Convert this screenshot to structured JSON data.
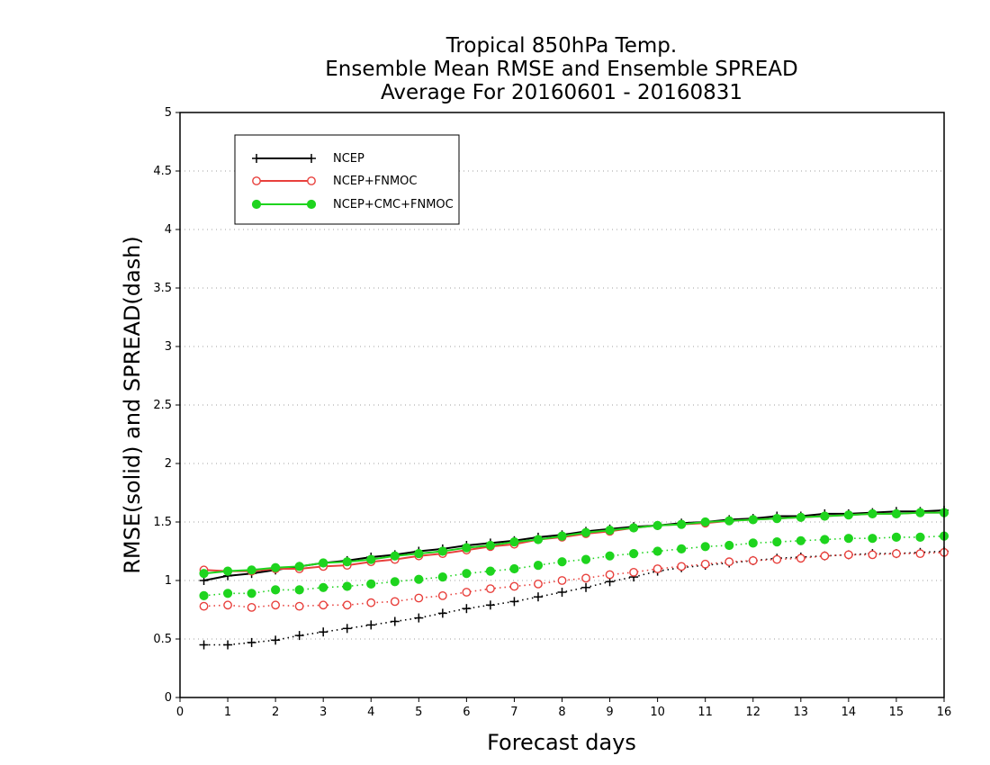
{
  "chart_data": {
    "type": "line",
    "title_lines": [
      "Tropical 850hPa Temp.",
      "Ensemble Mean RMSE and Ensemble SPREAD",
      "Average For 20160601 - 20160831"
    ],
    "xlabel": "Forecast days",
    "ylabel": "RMSE(solid) and SPREAD(dash)",
    "xlim": [
      0,
      16
    ],
    "ylim": [
      0,
      5
    ],
    "xticks": [
      "0",
      "1",
      "2",
      "3",
      "4",
      "5",
      "6",
      "7",
      "8",
      "9",
      "10",
      "11",
      "12",
      "13",
      "14",
      "15",
      "16"
    ],
    "yticks": [
      "0",
      "0.5",
      "1",
      "1.5",
      "2",
      "2.5",
      "3",
      "3.5",
      "4",
      "4.5",
      "5"
    ],
    "grid": "horizontal dotted",
    "legend_position": "top-left",
    "x": [
      0.5,
      1,
      1.5,
      2,
      2.5,
      3,
      3.5,
      4,
      4.5,
      5,
      5.5,
      6,
      6.5,
      7,
      7.5,
      8,
      8.5,
      9,
      9.5,
      10,
      10.5,
      11,
      11.5,
      12,
      12.5,
      13,
      13.5,
      14,
      14.5,
      15,
      15.5,
      16
    ],
    "series": [
      {
        "name": "NCEP",
        "color": "#000000",
        "marker": "plus",
        "rmse": [
          1.0,
          1.04,
          1.06,
          1.09,
          1.12,
          1.15,
          1.17,
          1.2,
          1.22,
          1.25,
          1.27,
          1.3,
          1.32,
          1.34,
          1.37,
          1.39,
          1.42,
          1.44,
          1.46,
          1.47,
          1.49,
          1.5,
          1.52,
          1.53,
          1.55,
          1.55,
          1.57,
          1.57,
          1.58,
          1.59,
          1.59,
          1.6
        ],
        "spread": [
          0.45,
          0.45,
          0.47,
          0.49,
          0.53,
          0.56,
          0.59,
          0.62,
          0.65,
          0.68,
          0.72,
          0.76,
          0.79,
          0.82,
          0.86,
          0.9,
          0.94,
          0.99,
          1.03,
          1.08,
          1.11,
          1.13,
          1.15,
          1.17,
          1.19,
          1.2,
          1.21,
          1.22,
          1.23,
          1.23,
          1.24,
          1.25
        ]
      },
      {
        "name": "NCEP+FNMOC",
        "color": "#e8403c",
        "marker": "open-circle",
        "rmse": [
          1.09,
          1.08,
          1.08,
          1.1,
          1.1,
          1.12,
          1.13,
          1.16,
          1.18,
          1.21,
          1.23,
          1.26,
          1.29,
          1.31,
          1.35,
          1.37,
          1.4,
          1.42,
          1.45,
          1.47,
          1.48,
          1.49,
          1.51,
          1.52,
          1.53,
          1.54,
          1.55,
          1.56,
          1.57,
          1.57,
          1.58,
          1.58
        ],
        "spread": [
          0.78,
          0.79,
          0.77,
          0.79,
          0.78,
          0.79,
          0.79,
          0.81,
          0.82,
          0.85,
          0.87,
          0.9,
          0.93,
          0.95,
          0.97,
          1.0,
          1.02,
          1.05,
          1.07,
          1.1,
          1.12,
          1.14,
          1.16,
          1.17,
          1.18,
          1.19,
          1.21,
          1.22,
          1.22,
          1.23,
          1.23,
          1.24
        ]
      },
      {
        "name": "NCEP+CMC+FNMOC",
        "color": "#1ed41e",
        "marker": "filled-circle",
        "rmse": [
          1.06,
          1.08,
          1.09,
          1.11,
          1.12,
          1.15,
          1.16,
          1.18,
          1.21,
          1.23,
          1.25,
          1.28,
          1.3,
          1.33,
          1.35,
          1.38,
          1.41,
          1.43,
          1.45,
          1.47,
          1.48,
          1.5,
          1.51,
          1.52,
          1.53,
          1.54,
          1.55,
          1.56,
          1.57,
          1.57,
          1.58,
          1.58
        ],
        "spread": [
          0.87,
          0.89,
          0.89,
          0.92,
          0.92,
          0.94,
          0.95,
          0.97,
          0.99,
          1.01,
          1.03,
          1.06,
          1.08,
          1.1,
          1.13,
          1.16,
          1.18,
          1.21,
          1.23,
          1.25,
          1.27,
          1.29,
          1.3,
          1.32,
          1.33,
          1.34,
          1.35,
          1.36,
          1.36,
          1.37,
          1.37,
          1.38
        ]
      }
    ]
  }
}
